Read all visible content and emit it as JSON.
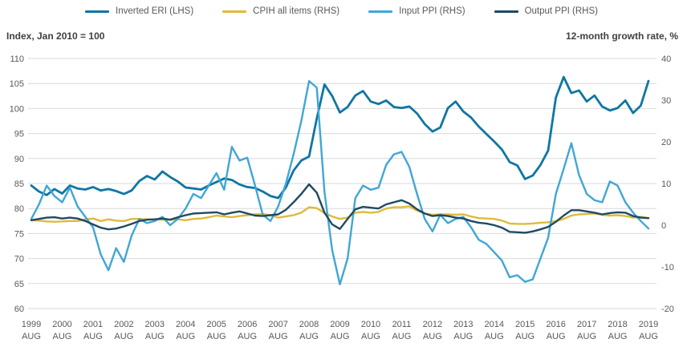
{
  "colors": {
    "background": "#ffffff",
    "grid": "#d9d9d9",
    "tick_text": "#595959",
    "axis_title_text": "#404040"
  },
  "chart_data": {
    "type": "line",
    "title": "",
    "grid": "horizontal",
    "legend_position": "top-center",
    "left_axis": {
      "title": "Index, Jan 2010 =  100",
      "range": [
        60,
        110
      ],
      "ticks": [
        110,
        105,
        100,
        95,
        90,
        85,
        80,
        75,
        70,
        65,
        60
      ]
    },
    "right_axis": {
      "title": "12-month growth rate, %",
      "range": [
        -20,
        40
      ],
      "ticks": [
        40,
        30,
        20,
        10,
        0,
        -10,
        -20
      ]
    },
    "x_axis": {
      "start": 1999.58,
      "end": 2019.58,
      "tick_sublabel": "AUG",
      "tick_years": [
        1999,
        2000,
        2001,
        2002,
        2003,
        2004,
        2005,
        2006,
        2007,
        2008,
        2009,
        2010,
        2011,
        2012,
        2013,
        2014,
        2015,
        2016,
        2017,
        2018,
        2019
      ]
    },
    "x_years": [
      1999.58,
      1999.83,
      2000.08,
      2000.33,
      2000.58,
      2000.83,
      2001.08,
      2001.33,
      2001.58,
      2001.83,
      2002.08,
      2002.33,
      2002.58,
      2002.83,
      2003.08,
      2003.33,
      2003.58,
      2003.83,
      2004.08,
      2004.33,
      2004.58,
      2004.83,
      2005.08,
      2005.33,
      2005.58,
      2005.83,
      2006.08,
      2006.33,
      2006.58,
      2006.83,
      2007.08,
      2007.33,
      2007.58,
      2007.83,
      2008.08,
      2008.33,
      2008.58,
      2008.83,
      2009.08,
      2009.33,
      2009.58,
      2009.83,
      2010.08,
      2010.33,
      2010.58,
      2010.83,
      2011.08,
      2011.33,
      2011.58,
      2011.83,
      2012.08,
      2012.33,
      2012.58,
      2012.83,
      2013.08,
      2013.33,
      2013.58,
      2013.83,
      2014.08,
      2014.33,
      2014.58,
      2014.83,
      2015.08,
      2015.33,
      2015.58,
      2015.83,
      2016.08,
      2016.33,
      2016.58,
      2016.83,
      2017.08,
      2017.33,
      2017.58,
      2017.83,
      2018.08,
      2018.33,
      2018.58,
      2018.83,
      2019.08,
      2019.33,
      2019.58
    ],
    "series": [
      {
        "name": "Inverted ERI (LHS)",
        "axis": "left",
        "color": "#0f76a3",
        "width": 2.8,
        "values": [
          84.6,
          83.4,
          82.7,
          83.9,
          83.0,
          84.6,
          84.0,
          83.8,
          84.3,
          83.6,
          83.9,
          83.5,
          82.9,
          83.6,
          85.5,
          86.5,
          85.8,
          87.4,
          86.3,
          85.4,
          84.2,
          84.0,
          83.8,
          84.6,
          85.3,
          86.0,
          85.7,
          84.8,
          84.3,
          84.1,
          83.4,
          82.5,
          82.1,
          84.2,
          87.6,
          89.6,
          90.4,
          98.0,
          104.8,
          102.5,
          99.2,
          100.3,
          102.6,
          103.5,
          101.4,
          100.9,
          101.6,
          100.3,
          100.1,
          100.4,
          99.0,
          96.9,
          95.4,
          96.2,
          100.1,
          101.4,
          99.4,
          98.2,
          96.4,
          94.9,
          93.4,
          91.8,
          89.3,
          88.6,
          85.9,
          86.6,
          88.7,
          91.6,
          102.2,
          106.3,
          103.1,
          103.6,
          101.4,
          102.6,
          100.4,
          99.6,
          100.1,
          101.6,
          99.1,
          100.6,
          105.5
        ]
      },
      {
        "name": "CPIH all items (RHS)",
        "axis": "right",
        "color": "#dfba3c",
        "width": 2.4,
        "values": [
          1.2,
          1.1,
          0.9,
          0.8,
          0.9,
          1.0,
          1.0,
          1.4,
          1.6,
          1.0,
          1.4,
          1.1,
          1.0,
          1.5,
          1.5,
          1.4,
          1.4,
          1.3,
          1.3,
          1.4,
          1.2,
          1.5,
          1.6,
          1.9,
          2.3,
          2.1,
          1.9,
          2.2,
          2.4,
          2.6,
          2.7,
          2.4,
          1.8,
          2.1,
          2.4,
          3.0,
          4.3,
          4.1,
          2.9,
          2.1,
          1.5,
          1.8,
          3.0,
          3.2,
          3.0,
          3.2,
          4.0,
          4.3,
          4.3,
          4.5,
          3.5,
          2.8,
          2.5,
          2.6,
          2.6,
          2.5,
          2.6,
          2.1,
          1.7,
          1.6,
          1.5,
          1.1,
          0.4,
          0.3,
          0.3,
          0.4,
          0.6,
          0.7,
          1.0,
          1.5,
          2.3,
          2.6,
          2.7,
          2.8,
          2.5,
          2.3,
          2.4,
          2.2,
          1.8,
          2.0,
          1.7
        ]
      },
      {
        "name": "Input PPI  (RHS)",
        "axis": "right",
        "color": "#41a6d6",
        "width": 2.4,
        "values": [
          1.5,
          5.0,
          9.5,
          7.0,
          5.5,
          9.0,
          4.5,
          2.0,
          -0.5,
          -7.0,
          -10.8,
          -5.5,
          -8.8,
          -2.5,
          1.5,
          0.5,
          1.0,
          2.0,
          0.0,
          1.5,
          4.0,
          7.5,
          6.5,
          9.5,
          12.5,
          8.5,
          18.8,
          15.5,
          16.2,
          9.5,
          2.5,
          1.0,
          4.5,
          10.0,
          17.0,
          25.0,
          34.6,
          33.0,
          8.0,
          -6.0,
          -14.2,
          -8.0,
          6.5,
          9.5,
          8.5,
          9.0,
          14.5,
          17.0,
          17.6,
          14.0,
          7.5,
          1.5,
          -1.5,
          2.5,
          0.5,
          1.5,
          2.0,
          -0.5,
          -3.5,
          -4.5,
          -6.5,
          -8.5,
          -12.5,
          -12.0,
          -13.6,
          -13.0,
          -8.0,
          -3.0,
          7.5,
          13.5,
          19.7,
          12.0,
          7.5,
          6.0,
          5.5,
          10.5,
          9.5,
          5.5,
          3.0,
          1.0,
          -0.8
        ]
      },
      {
        "name": "Output PPI (RHS)",
        "axis": "right",
        "color": "#1e4a63",
        "width": 2.4,
        "values": [
          1.2,
          1.5,
          1.8,
          1.9,
          1.6,
          1.8,
          1.6,
          1.0,
          0.2,
          -0.6,
          -1.0,
          -0.8,
          -0.3,
          0.3,
          1.0,
          1.3,
          1.4,
          1.6,
          1.3,
          1.9,
          2.4,
          2.8,
          2.9,
          3.0,
          3.1,
          2.6,
          3.0,
          3.3,
          2.8,
          2.3,
          2.2,
          2.4,
          2.6,
          3.7,
          5.5,
          7.5,
          9.8,
          7.8,
          3.0,
          0.2,
          -0.9,
          1.5,
          3.8,
          4.4,
          4.2,
          4.0,
          5.0,
          5.5,
          6.0,
          5.2,
          3.8,
          2.8,
          2.2,
          2.4,
          2.2,
          1.8,
          1.6,
          1.0,
          0.6,
          0.4,
          0.0,
          -0.6,
          -1.6,
          -1.7,
          -1.8,
          -1.5,
          -1.0,
          -0.4,
          0.8,
          2.3,
          3.6,
          3.6,
          3.3,
          3.0,
          2.6,
          2.9,
          3.1,
          3.0,
          2.2,
          1.8,
          1.7
        ]
      }
    ]
  }
}
